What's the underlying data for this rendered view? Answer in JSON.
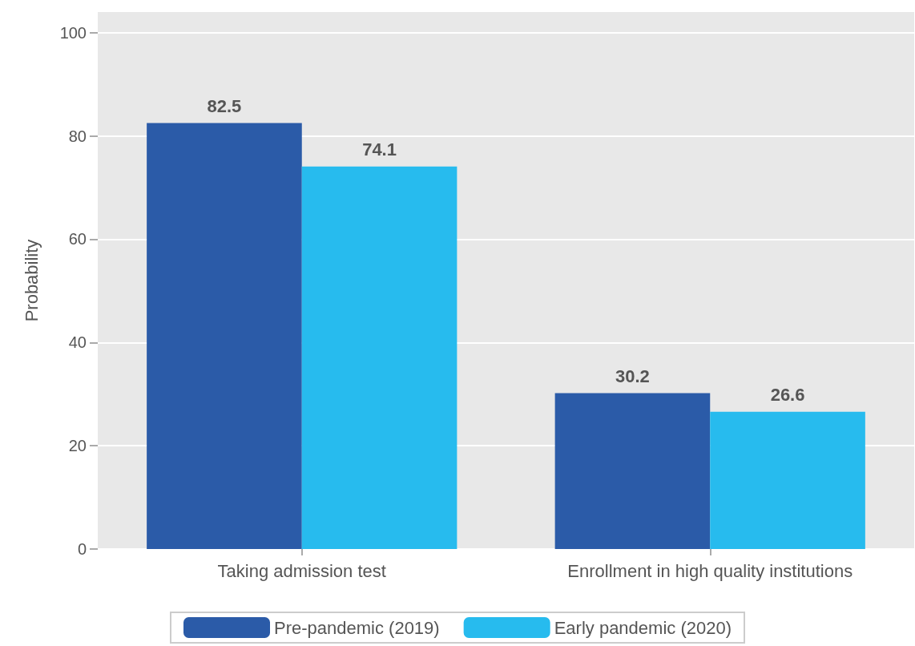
{
  "chart_data": {
    "type": "bar",
    "ylabel": "Probability",
    "categories": [
      "Taking admission test",
      "Enrollment in high quality institutions"
    ],
    "series": [
      {
        "name": "Pre-pandemic (2019)",
        "color": "#2b5ba8",
        "values": [
          82.5,
          30.2
        ]
      },
      {
        "name": "Early pandemic (2020)",
        "color": "#27bbee",
        "values": [
          74.1,
          26.6
        ]
      }
    ],
    "ylim": [
      0,
      104
    ],
    "yticks": [
      0,
      20,
      40,
      60,
      80,
      100
    ],
    "grid": "y",
    "legend": "bottom",
    "data_labels": true
  }
}
